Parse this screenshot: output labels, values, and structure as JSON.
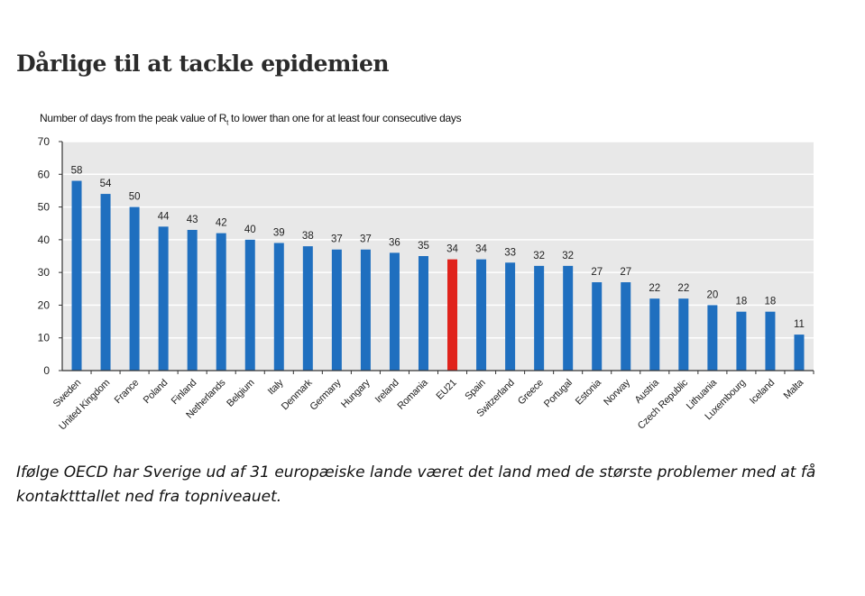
{
  "page": {
    "headline": "Dårlige til at tackle epidemien",
    "caption": "Ifølge OECD har Sverige ud af 31 europæiske lande været det land med de største problemer med at få kontaktttallet ned fra topniveauet."
  },
  "chart_data": {
    "type": "bar",
    "subtitle_parts": {
      "before": "Number of days from the peak value of R",
      "sub": "t",
      "after": " to lower than one for at least four consecutive days"
    },
    "categories": [
      "Sweden",
      "United Kingdom",
      "France",
      "Poland",
      "Finland",
      "Netherlands",
      "Belgium",
      "Italy",
      "Denmark",
      "Germany",
      "Hungary",
      "Ireland",
      "Romania",
      "EU21",
      "Spain",
      "Switzerland",
      "Greece",
      "Portugal",
      "Estonia",
      "Norway",
      "Austria",
      "Czech Republic",
      "Lithuania",
      "Luxembourg",
      "Iceland",
      "Malta"
    ],
    "values": [
      58,
      54,
      50,
      44,
      43,
      42,
      40,
      39,
      38,
      37,
      37,
      36,
      35,
      34,
      34,
      33,
      32,
      32,
      27,
      27,
      22,
      22,
      20,
      18,
      18,
      11
    ],
    "highlight": "EU21",
    "ylim": [
      0,
      70
    ],
    "yticks": [
      0,
      10,
      20,
      30,
      40,
      50,
      60,
      70
    ],
    "grid": true,
    "colors": {
      "bar": "#1f6fbf",
      "highlight": "#e0221b",
      "plot_bg": "#e8e8e8",
      "grid": "#ffffff"
    }
  }
}
